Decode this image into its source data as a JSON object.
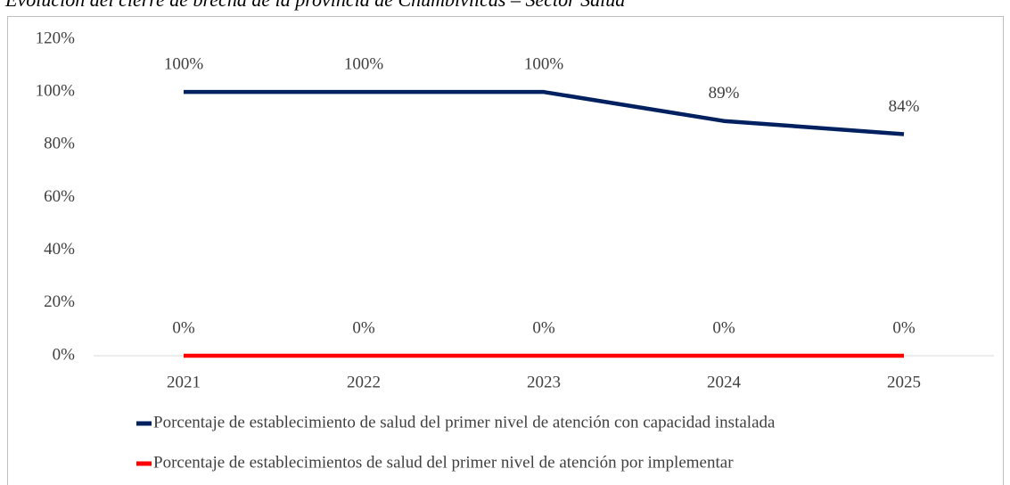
{
  "chart_data": {
    "type": "line",
    "title": "Evolución del cierre de brecha de la provincia de Chumbivilcas – Sector Salud",
    "categories": [
      "2021",
      "2022",
      "2023",
      "2024",
      "2025"
    ],
    "series": [
      {
        "name": "Porcentaje de establecimiento de salud del primer nivel de atención con capacidad instalada",
        "color": "#002060",
        "values": [
          100,
          100,
          100,
          89,
          84
        ],
        "value_labels": [
          "100%",
          "100%",
          "100%",
          "89%",
          "84%"
        ]
      },
      {
        "name": "Porcentaje de establecimientos de salud del primer nivel de atención por implementar",
        "color": "#ff0000",
        "values": [
          0,
          0,
          0,
          0,
          0
        ],
        "value_labels": [
          "0%",
          "0%",
          "0%",
          "0%",
          "0%"
        ]
      }
    ],
    "ylim": [
      0,
      120
    ],
    "yticks": [
      {
        "value": 0,
        "label": "0%"
      },
      {
        "value": 20,
        "label": "20%"
      },
      {
        "value": 40,
        "label": "40%"
      },
      {
        "value": 60,
        "label": "60%"
      },
      {
        "value": 80,
        "label": "80%"
      },
      {
        "value": 100,
        "label": "100%"
      },
      {
        "value": 120,
        "label": "120%"
      }
    ],
    "grid": false,
    "legend": "bottom"
  }
}
